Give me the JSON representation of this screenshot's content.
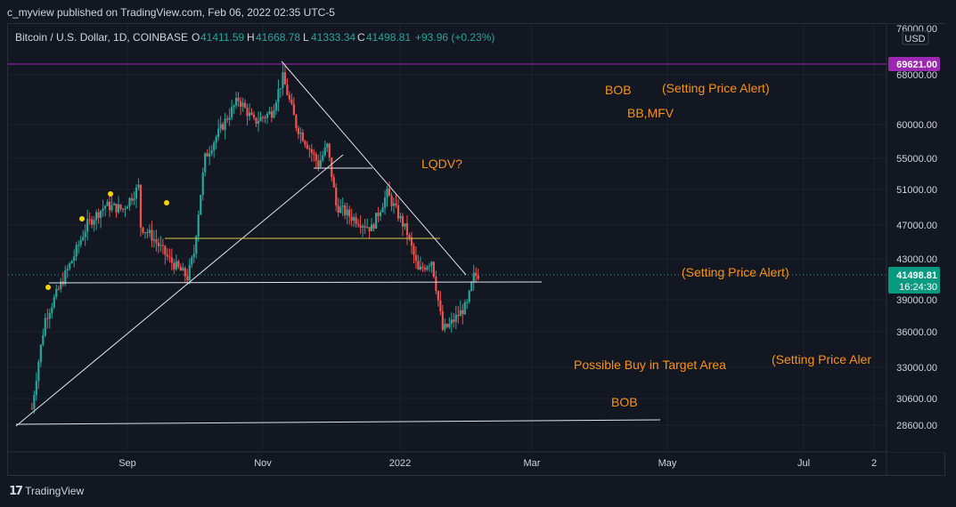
{
  "header": {
    "publisher": "c_myview published on TradingView.com, Feb 06, 2022 02:35 UTC-5"
  },
  "legend": {
    "symbol": "Bitcoin / U.S. Dollar, 1D, COINBASE",
    "o_label": "O",
    "o": "41411.59",
    "h_label": "H",
    "h": "41668.78",
    "l_label": "L",
    "l": "41333.34",
    "c_label": "C",
    "c": "41498.81",
    "change": "+93.96 (+0.23%)"
  },
  "footer": {
    "brand": "TradingView"
  },
  "colors": {
    "background": "#131722",
    "up": "#26a69a",
    "down": "#ef5350",
    "annotation": "#f7931a",
    "price_label": "#089981",
    "resistance": "#9c27b0"
  },
  "chart_data": {
    "type": "candlestick",
    "symbol": "BTCUSD",
    "interval": "1D",
    "y_axis": {
      "scale": "log",
      "ticks": [
        "76000.00",
        "68000.00",
        "60000.00",
        "55000.00",
        "51000.00",
        "47000.00",
        "43000.00",
        "39000.00",
        "36000.00",
        "33000.00",
        "30600.00",
        "28600.00"
      ],
      "currency_label": "USD"
    },
    "x_axis": {
      "ticks": [
        "Sep",
        "Nov",
        "2022",
        "Mar",
        "May",
        "Jul",
        "2"
      ]
    },
    "price_labels": [
      {
        "value": "69621.00",
        "kind": "horizontal-line"
      },
      {
        "value": "41498.81",
        "kind": "last-price",
        "countdown": "16:24:30"
      }
    ],
    "annotations": [
      "BOB",
      "(Setting Price Alert)",
      "BB,MFV",
      "LQDV?",
      "(Setting Price Alert)",
      "Possible Buy in Target Area",
      "(Setting Price Aler",
      "BOB"
    ],
    "series_shape": [
      [
        "2021-07-20",
        29800
      ],
      [
        "2021-07-26",
        37200
      ],
      [
        "2021-08-01",
        40000
      ],
      [
        "2021-08-08",
        43500
      ],
      [
        "2021-08-14",
        47000
      ],
      [
        "2021-08-22",
        49200
      ],
      [
        "2021-08-30",
        48800
      ],
      [
        "2021-09-06",
        51500
      ],
      [
        "2021-09-07",
        46800
      ],
      [
        "2021-09-12",
        45600
      ],
      [
        "2021-09-20",
        43000
      ],
      [
        "2021-09-28",
        41200
      ],
      [
        "2021-10-01",
        43800
      ],
      [
        "2021-10-06",
        55400
      ],
      [
        "2021-10-16",
        61200
      ],
      [
        "2021-10-21",
        64000
      ],
      [
        "2021-10-28",
        60500
      ],
      [
        "2021-11-05",
        62000
      ],
      [
        "2021-11-10",
        67500
      ],
      [
        "2021-11-16",
        60000
      ],
      [
        "2021-11-26",
        54500
      ],
      [
        "2021-11-30",
        57000
      ],
      [
        "2021-12-04",
        49200
      ],
      [
        "2021-12-10",
        48000
      ],
      [
        "2021-12-20",
        46500
      ],
      [
        "2021-12-27",
        50700
      ],
      [
        "2022-01-05",
        46000
      ],
      [
        "2022-01-10",
        41800
      ],
      [
        "2022-01-16",
        43000
      ],
      [
        "2022-01-21",
        36200
      ],
      [
        "2022-01-24",
        36600
      ],
      [
        "2022-02-01",
        38500
      ],
      [
        "2022-02-04",
        41300
      ],
      [
        "2022-02-06",
        41498.81
      ]
    ]
  }
}
